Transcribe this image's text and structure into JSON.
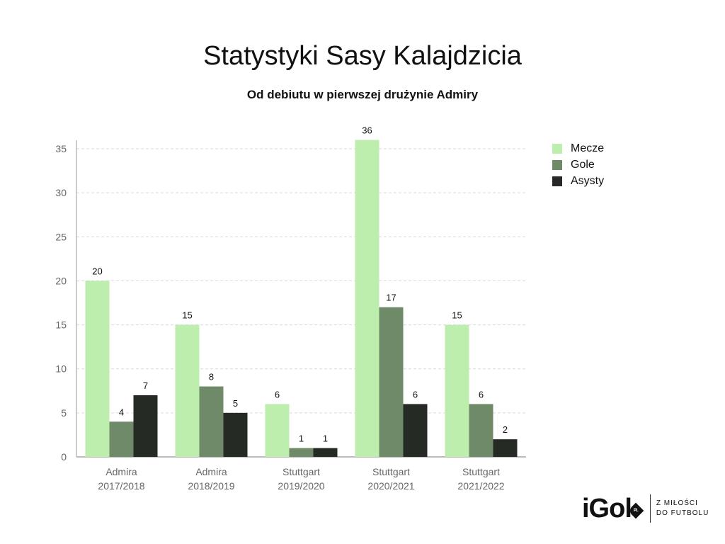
{
  "chart_data": {
    "type": "bar",
    "title": "Statystyki Sasy Kalajdzicia",
    "subtitle": "Od debiutu w pierwszej drużynie Admiry",
    "categories": [
      [
        "Admira",
        "2017/2018"
      ],
      [
        "Admira",
        "2018/2019"
      ],
      [
        "Stuttgart",
        "2019/2020"
      ],
      [
        "Stuttgart",
        "2020/2021"
      ],
      [
        "Stuttgart",
        "2021/2022"
      ]
    ],
    "series": [
      {
        "name": "Mecze",
        "color": "#bdeeae",
        "values": [
          20,
          15,
          6,
          36,
          15
        ]
      },
      {
        "name": "Gole",
        "color": "#6f8a69",
        "values": [
          4,
          8,
          1,
          17,
          6
        ]
      },
      {
        "name": "Asysty",
        "color": "#252a24",
        "values": [
          7,
          5,
          1,
          6,
          2
        ]
      }
    ],
    "ylim": [
      0,
      35
    ],
    "yticks": [
      0,
      5,
      10,
      15,
      20,
      25,
      30,
      35
    ],
    "grid": true,
    "legend": "top-right"
  },
  "logo": {
    "word": "iGol",
    "badge": "PL",
    "tagline_line1": "Z MIŁOŚCI",
    "tagline_line2": "DO FUTBOLU"
  }
}
